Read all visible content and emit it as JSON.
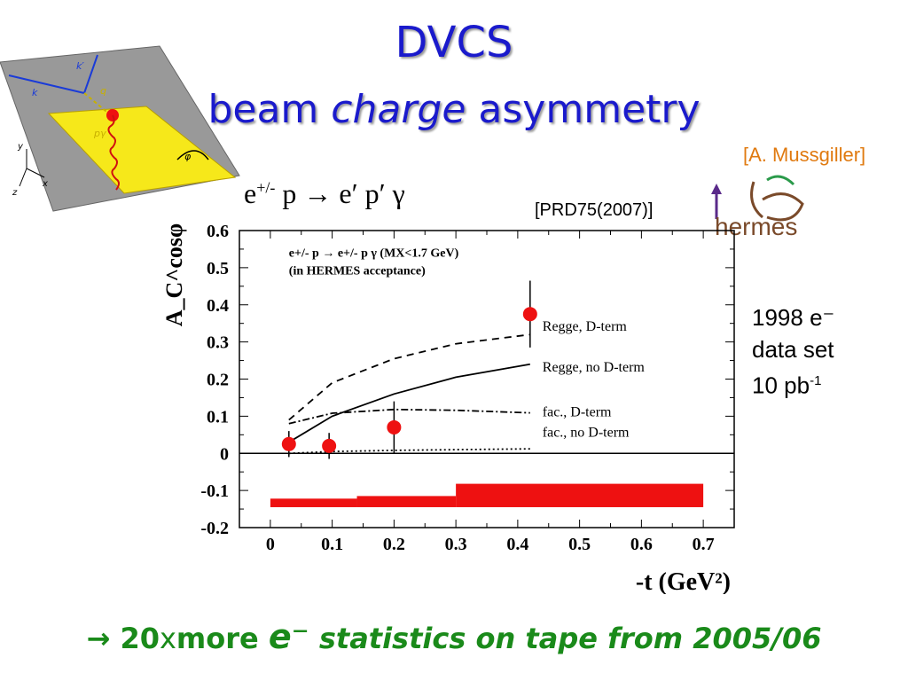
{
  "slide": {
    "title_line1": "DVCS",
    "title_line2_pre": "beam",
    "title_line2_it": "charge",
    "title_line2_post": "asymmetry",
    "author": "[A. Mussgiller]",
    "reaction_base": "e",
    "reaction_sup": "+/-",
    "reaction_rest": " p → e′ p′ γ",
    "reference": "[PRD75(2007)]",
    "dataset_line1": "1998 e⁻",
    "dataset_line2": "data set",
    "dataset_line3_base": "10 pb",
    "dataset_line3_sup": "-1",
    "bottom_arrow": "→",
    "bottom_count": "20",
    "bottom_x": "x",
    "bottom_more": "more",
    "bottom_e": "e⁻",
    "bottom_rest": "statistics on tape from 2005/06",
    "logo_text": "hermes"
  },
  "kinematics": {
    "labels": [
      "k′",
      "k",
      "q",
      "pγ",
      "φ",
      "y",
      "x",
      "z"
    ]
  },
  "chart_data": {
    "type": "scatter",
    "xlabel": "-t (GeV²)",
    "ylabel": "A_C^cosφ",
    "xlim": [
      -0.05,
      0.75
    ],
    "ylim": [
      -0.2,
      0.6
    ],
    "xticks": [
      "0",
      "0.1",
      "0.2",
      "0.3",
      "0.4",
      "0.5",
      "0.6",
      "0.7"
    ],
    "yticks": [
      "0.6",
      "0.5",
      "0.4",
      "0.3",
      "0.2",
      "0.1",
      "0",
      "-0.1",
      "-0.2"
    ],
    "annotation_line1": "e+/- p → e+/- p γ (MX<1.7 GeV)",
    "annotation_line2": "(in HERMES acceptance)",
    "points": {
      "x": [
        0.03,
        0.095,
        0.2,
        0.42
      ],
      "y": [
        0.025,
        0.02,
        0.07,
        0.375
      ],
      "err": [
        0.035,
        0.035,
        0.07,
        0.09
      ],
      "color": "#ee1111"
    },
    "curves": [
      {
        "name": "Regge, D-term",
        "style": "dashed",
        "x": [
          0.03,
          0.1,
          0.2,
          0.3,
          0.42
        ],
        "y": [
          0.09,
          0.19,
          0.255,
          0.295,
          0.32
        ]
      },
      {
        "name": "Regge, no D-term",
        "style": "solid",
        "x": [
          0.03,
          0.1,
          0.2,
          0.3,
          0.42
        ],
        "y": [
          0.03,
          0.1,
          0.16,
          0.205,
          0.24
        ]
      },
      {
        "name": "fac., D-term",
        "style": "dashdot",
        "x": [
          0.03,
          0.1,
          0.2,
          0.3,
          0.42
        ],
        "y": [
          0.08,
          0.108,
          0.118,
          0.116,
          0.109
        ]
      },
      {
        "name": "fac., no D-term",
        "style": "dotted",
        "x": [
          0.03,
          0.1,
          0.2,
          0.3,
          0.42
        ],
        "y": [
          0.0,
          0.005,
          0.008,
          0.01,
          0.012
        ]
      }
    ],
    "systematic_band": {
      "color": "#ee1111",
      "segments": [
        {
          "x0": 0.0,
          "x1": 0.14,
          "y0": -0.145,
          "y1": -0.122
        },
        {
          "x0": 0.14,
          "x1": 0.3,
          "y0": -0.145,
          "y1": -0.115
        },
        {
          "x0": 0.3,
          "x1": 0.7,
          "y0": -0.145,
          "y1": -0.082
        }
      ]
    }
  }
}
